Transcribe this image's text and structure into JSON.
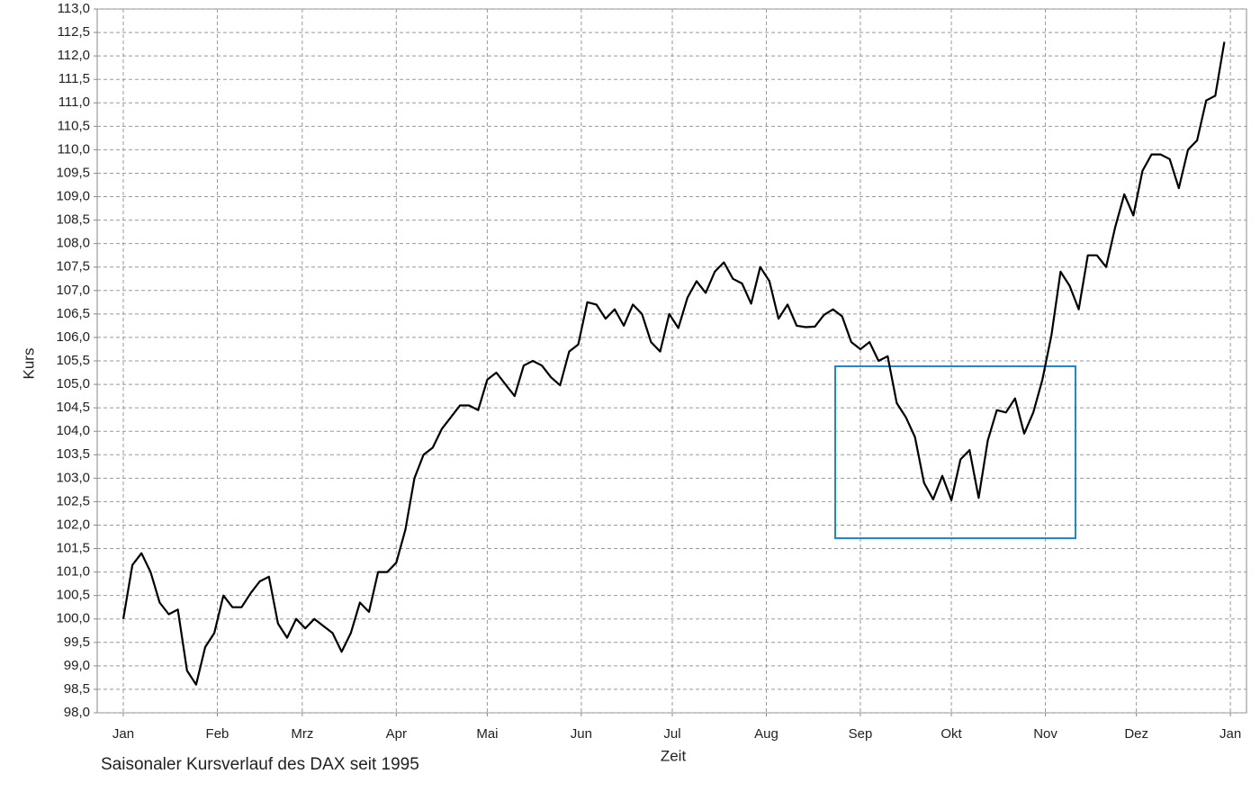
{
  "chart_data": {
    "type": "line",
    "caption": "Saisonaler Kursverlauf des DAX seit 1995",
    "xlabel": "Zeit",
    "ylabel": "Kurs",
    "x": [
      0,
      3,
      6,
      9,
      12,
      15,
      18,
      21,
      24,
      27,
      30,
      33,
      36,
      39,
      42,
      45,
      48,
      51,
      54,
      57,
      60,
      63,
      66,
      69,
      72,
      75,
      78,
      81,
      84,
      87,
      90,
      93,
      96,
      99,
      102,
      105,
      108,
      111,
      114,
      117,
      120,
      123,
      126,
      129,
      132,
      135,
      138,
      141,
      144,
      147,
      150,
      153,
      156,
      159,
      162,
      165,
      168,
      171,
      174,
      177,
      180,
      183,
      186,
      189,
      192,
      195,
      198,
      201,
      204,
      207,
      210,
      213,
      216,
      219,
      222,
      225,
      228,
      231,
      234,
      237,
      240,
      243,
      246,
      249,
      252,
      255,
      258,
      261,
      264,
      267,
      270,
      273,
      276,
      279,
      282,
      285,
      288,
      291,
      294,
      297,
      300,
      303,
      306,
      309,
      312,
      315,
      318,
      321,
      324,
      327,
      330,
      333,
      336,
      339,
      342,
      345,
      348,
      351,
      354,
      357,
      360,
      363
    ],
    "series": [
      {
        "name": "DAX",
        "color": "#000000",
        "values": [
          100.0,
          101.15,
          101.4,
          101.0,
          100.35,
          100.1,
          100.2,
          98.9,
          98.6,
          99.4,
          99.7,
          100.5,
          100.25,
          100.25,
          100.55,
          100.8,
          100.9,
          99.9,
          99.6,
          100.0,
          99.8,
          100.0,
          99.85,
          99.7,
          99.3,
          99.7,
          100.35,
          100.15,
          101.0,
          101.0,
          101.2,
          101.9,
          103.0,
          103.5,
          103.65,
          104.05,
          104.3,
          104.55,
          104.55,
          104.45,
          105.1,
          105.25,
          105.0,
          104.75,
          105.4,
          105.5,
          105.4,
          105.15,
          104.98,
          105.7,
          105.85,
          106.75,
          106.7,
          106.4,
          106.6,
          106.25,
          106.7,
          106.5,
          105.9,
          105.7,
          106.5,
          106.2,
          106.85,
          107.2,
          106.95,
          107.4,
          107.6,
          107.25,
          107.15,
          106.72,
          107.5,
          107.2,
          106.4,
          106.7,
          106.25,
          106.22,
          106.23,
          106.48,
          106.6,
          106.45,
          105.9,
          105.75,
          105.9,
          105.5,
          105.6,
          104.6,
          104.3,
          103.88,
          102.9,
          102.55,
          103.05,
          102.53,
          103.4,
          103.6,
          102.58,
          103.8,
          104.45,
          104.4,
          104.7,
          103.95,
          104.4,
          105.1,
          106.05,
          107.4,
          107.1,
          106.6,
          107.75,
          107.75,
          107.5,
          108.35,
          109.05,
          108.6,
          109.55,
          109.9,
          109.9,
          109.8,
          109.18,
          110.0,
          110.2,
          111.05,
          111.15,
          112.3
        ]
      }
    ],
    "xlim": [
      -8.6,
      370.3
    ],
    "xticks": [
      {
        "value": 0,
        "label": "Jan"
      },
      {
        "value": 31,
        "label": "Feb"
      },
      {
        "value": 59,
        "label": "Mrz"
      },
      {
        "value": 90,
        "label": "Apr"
      },
      {
        "value": 120,
        "label": "Mai"
      },
      {
        "value": 151,
        "label": "Jun"
      },
      {
        "value": 181,
        "label": "Jul"
      },
      {
        "value": 212,
        "label": "Aug"
      },
      {
        "value": 243,
        "label": "Sep"
      },
      {
        "value": 273,
        "label": "Okt"
      },
      {
        "value": 304,
        "label": "Nov"
      },
      {
        "value": 334,
        "label": "Dez"
      },
      {
        "value": 365,
        "label": "Jan"
      }
    ],
    "ylim": [
      98,
      113
    ],
    "yticks": [
      {
        "value": 98,
        "label": "98,0"
      },
      {
        "value": 98.5,
        "label": "98,5"
      },
      {
        "value": 99,
        "label": "99,0"
      },
      {
        "value": 99.5,
        "label": "99,5"
      },
      {
        "value": 100,
        "label": "100,0"
      },
      {
        "value": 100.5,
        "label": "100,5"
      },
      {
        "value": 101,
        "label": "101,0"
      },
      {
        "value": 101.5,
        "label": "101,5"
      },
      {
        "value": 102,
        "label": "102,0"
      },
      {
        "value": 102.5,
        "label": "102,5"
      },
      {
        "value": 103,
        "label": "103,0"
      },
      {
        "value": 103.5,
        "label": "103,5"
      },
      {
        "value": 104,
        "label": "104,0"
      },
      {
        "value": 104.5,
        "label": "104,5"
      },
      {
        "value": 105,
        "label": "105,0"
      },
      {
        "value": 105.5,
        "label": "105,5"
      },
      {
        "value": 106,
        "label": "106,0"
      },
      {
        "value": 106.5,
        "label": "106,5"
      },
      {
        "value": 107,
        "label": "107,0"
      },
      {
        "value": 107.5,
        "label": "107,5"
      },
      {
        "value": 108,
        "label": "108,0"
      },
      {
        "value": 108.5,
        "label": "108,5"
      },
      {
        "value": 109,
        "label": "109,0"
      },
      {
        "value": 109.5,
        "label": "109,5"
      },
      {
        "value": 110,
        "label": "110,0"
      },
      {
        "value": 110.5,
        "label": "110,5"
      },
      {
        "value": 111,
        "label": "111,0"
      },
      {
        "value": 111.5,
        "label": "111,5"
      },
      {
        "value": 112,
        "label": "112,0"
      },
      {
        "value": 112.5,
        "label": "112,5"
      },
      {
        "value": 113,
        "label": "113,0"
      }
    ],
    "grid": true
  }
}
